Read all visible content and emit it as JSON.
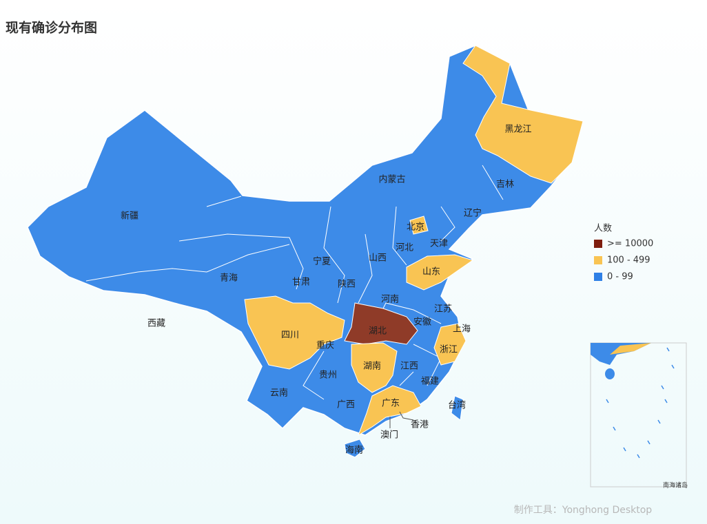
{
  "header": {
    "title": "现有确诊分布图"
  },
  "legend": {
    "title": "人数",
    "items": [
      {
        "label": ">= 10000",
        "color": "#7e1d0e"
      },
      {
        "label": "100 - 499",
        "color": "#f9c453"
      },
      {
        "label": "0 - 99",
        "color": "#2f80e6"
      }
    ]
  },
  "map": {
    "provinces": [
      {
        "name": "黑龙江",
        "color": "#f9c453"
      },
      {
        "name": "吉林",
        "color": "#3d8be8"
      },
      {
        "name": "辽宁",
        "color": "#3d8be8"
      },
      {
        "name": "内蒙古",
        "color": "#3d8be8"
      },
      {
        "name": "北京",
        "color": "#f9c453"
      },
      {
        "name": "天津",
        "color": "#3d8be8"
      },
      {
        "name": "河北",
        "color": "#3d8be8"
      },
      {
        "name": "山西",
        "color": "#3d8be8"
      },
      {
        "name": "山东",
        "color": "#f9c453"
      },
      {
        "name": "宁夏",
        "color": "#3d8be8"
      },
      {
        "name": "甘肃",
        "color": "#3d8be8"
      },
      {
        "name": "陕西",
        "color": "#3d8be8"
      },
      {
        "name": "河南",
        "color": "#3d8be8"
      },
      {
        "name": "江苏",
        "color": "#3d8be8"
      },
      {
        "name": "安徽",
        "color": "#3d8be8"
      },
      {
        "name": "上海",
        "color": "#3d8be8"
      },
      {
        "name": "湖北",
        "color": "#8f3b28"
      },
      {
        "name": "四川",
        "color": "#f9c453"
      },
      {
        "name": "重庆",
        "color": "#3d8be8"
      },
      {
        "name": "浙江",
        "color": "#f9c453"
      },
      {
        "name": "湖南",
        "color": "#f9c453"
      },
      {
        "name": "江西",
        "color": "#3d8be8"
      },
      {
        "name": "贵州",
        "color": "#3d8be8"
      },
      {
        "name": "福建",
        "color": "#3d8be8"
      },
      {
        "name": "云南",
        "color": "#3d8be8"
      },
      {
        "name": "广西",
        "color": "#3d8be8"
      },
      {
        "name": "广东",
        "color": "#f9c453"
      },
      {
        "name": "台湾",
        "color": "#3d8be8"
      },
      {
        "name": "香港",
        "color": "#3d8be8"
      },
      {
        "name": "澳门",
        "color": "#3d8be8"
      },
      {
        "name": "海南",
        "color": "#3d8be8"
      },
      {
        "name": "新疆",
        "color": "#3d8be8"
      },
      {
        "name": "青海",
        "color": "#3d8be8"
      },
      {
        "name": "西藏",
        "color": "#3d8be8"
      }
    ]
  },
  "inset": {
    "label": "南海诸岛"
  },
  "footer": {
    "credit": "制作工具：Yonghong Desktop"
  }
}
